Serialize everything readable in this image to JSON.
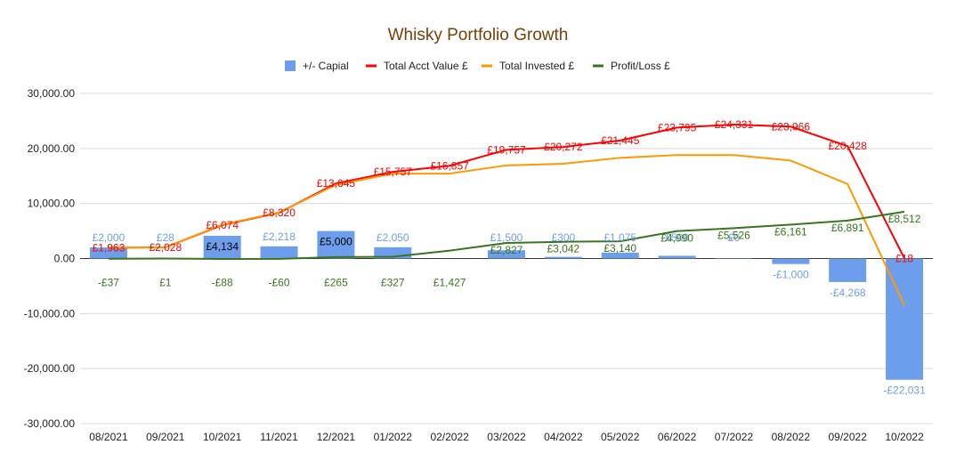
{
  "chart_data": {
    "type": "bar",
    "title": "Whisky Portfolio Growth",
    "categories": [
      "08/2021",
      "09/2021",
      "10/2021",
      "11/2021",
      "12/2021",
      "01/2022",
      "02/2022",
      "03/2022",
      "04/2022",
      "05/2022",
      "06/2022",
      "07/2022",
      "08/2022",
      "09/2022",
      "10/2022"
    ],
    "ylim": [
      -30000,
      30000
    ],
    "yticks": [
      30000,
      20000,
      10000,
      0,
      -10000,
      -20000,
      -30000
    ],
    "ytick_labels": [
      "30,000.00",
      "20,000.00",
      "10,000.00",
      "0.00",
      "-10,000.00",
      "-20,000.00",
      "-30,000.00"
    ],
    "grid": true,
    "legend_position": "top",
    "series": [
      {
        "name": "+/- Capial",
        "kind": "bar",
        "color": "#6d9eeb",
        "values": [
          2000,
          28,
          4134,
          2218,
          5000,
          2050,
          null,
          1500,
          300,
          1075,
          500,
          0,
          -1000,
          -4268,
          -22031
        ],
        "labels": [
          "£2,000",
          "£28",
          "£4,134",
          "£2,218",
          "£5,000",
          "£2,050",
          "",
          "£1,500",
          "£300",
          "£1,075",
          "£500",
          "£0",
          "-£1,000",
          "-£4,268",
          "-£22,031"
        ]
      },
      {
        "name": "Total Acct Value £",
        "kind": "line",
        "color": "#ff0000",
        "values": [
          1963,
          2028,
          6074,
          8320,
          13645,
          15757,
          16857,
          19757,
          20272,
          21445,
          23795,
          24331,
          23966,
          20428,
          18
        ],
        "labels": [
          "£1,963",
          "£2,028",
          "£6,074",
          "£8,320",
          "£13,645",
          "£15,757",
          "£16,857",
          "£19,757",
          "£20,272",
          "£21,445",
          "£23,795",
          "£24,331",
          "£23,966",
          "£20,428",
          "£18"
        ]
      },
      {
        "name": "Total Invested £",
        "kind": "line",
        "color": "#ff9900",
        "values": [
          2000,
          2028,
          6162,
          8380,
          13380,
          15430,
          15430,
          16930,
          17230,
          18305,
          18805,
          18805,
          17805,
          13537,
          -8494
        ]
      },
      {
        "name": "Profit/Loss £",
        "kind": "line",
        "color": "#38761d",
        "values": [
          -37,
          1,
          -88,
          -60,
          265,
          327,
          1427,
          2827,
          3042,
          3140,
          4990,
          5526,
          6161,
          6891,
          8512
        ],
        "labels": [
          "-£37",
          "£1",
          "-£88",
          "-£60",
          "£265",
          "£327",
          "£1,427",
          "£2,827",
          "£3,042",
          "£3,140",
          "£4,990",
          "£5,526",
          "£6,161",
          "£6,891",
          "£8,512"
        ]
      }
    ]
  }
}
